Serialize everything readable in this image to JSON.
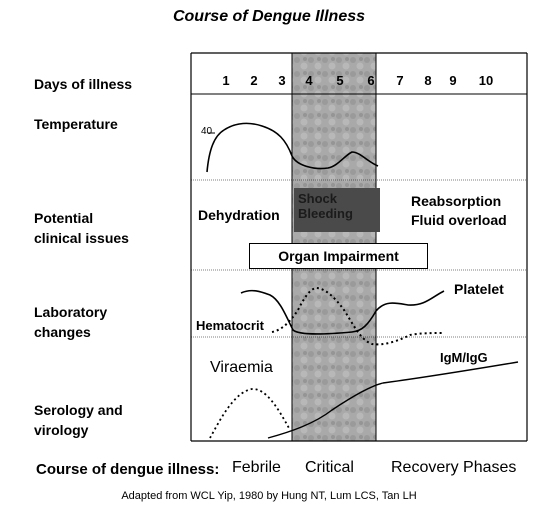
{
  "title": "Course of Dengue Illness",
  "row_labels": {
    "days": "Days of illness",
    "temperature": "Temperature",
    "clinical_line1": "Potential",
    "clinical_line2": "clinical issues",
    "lab_line1": "Laboratory",
    "lab_line2": "changes",
    "sero_line1": "Serology and",
    "sero_line2": "virology"
  },
  "days": [
    "1",
    "2",
    "3",
    "4",
    "5",
    "6",
    "7",
    "8",
    "9",
    "10"
  ],
  "temperature_tick": "40",
  "clinical": {
    "dehydration": "Dehydration",
    "shock_line1": "Shock",
    "shock_line2": "Bleeding",
    "reabsorption_line1": "Reabsorption",
    "reabsorption_line2": "Fluid overload",
    "organ": "Organ Impairment"
  },
  "lab": {
    "platelet": "Platelet",
    "hematocrit": "Hematocrit"
  },
  "serology": {
    "viraemia": "Viraemia",
    "igm": "IgM/IgG"
  },
  "phases": {
    "caption": "Course of dengue illness:",
    "febrile": "Febrile",
    "critical": "Critical",
    "recovery": "Recovery Phases"
  },
  "credit": "Adapted from WCL Yip, 1980 by Hung NT, Lum LCS, Tan LH",
  "colors": {
    "critical_band": "#a8a8a8",
    "shock_box": "#4a4a4a"
  }
}
